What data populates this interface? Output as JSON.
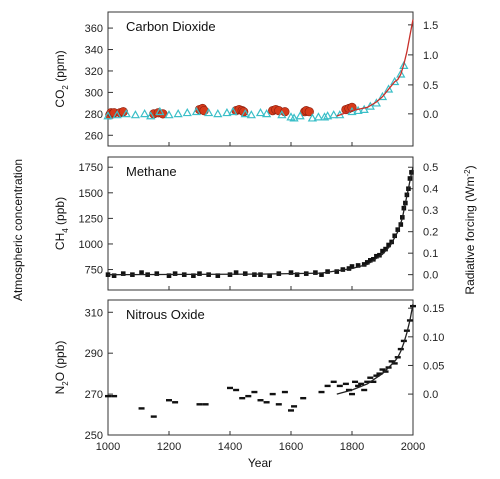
{
  "chart_data": {
    "type": "scatter",
    "shared": {
      "xlabel": "Year",
      "xlim": [
        1000,
        2000
      ],
      "xticks": [
        1000,
        1200,
        1400,
        1600,
        1800,
        2000
      ],
      "left_label": "Atmospheric concentration",
      "right_label": "Radiative forcing (Wm",
      "right_label_sup": "-2",
      "right_label_end": ")"
    },
    "panels": [
      {
        "id": "co2",
        "title": "Carbon Dioxide",
        "ylabel_main": "CO",
        "ylabel_sub": "2",
        "ylabel_unit": " (ppm)",
        "ylim": [
          250,
          375
        ],
        "yticks": [
          260,
          280,
          300,
          320,
          340,
          360
        ],
        "right_ticks": [
          {
            "label": "0.0",
            "at": 280
          },
          {
            "label": "0.5",
            "at": 307
          },
          {
            "label": "1.0",
            "at": 335
          },
          {
            "label": "1.5",
            "at": 363
          }
        ],
        "colors": {
          "circles": "#d63a1a",
          "triangles": "#3bbfc8",
          "curve": "#c8302a"
        },
        "series": [
          {
            "name": "",
            "marker": "circle",
            "x": [
              1006,
              1010,
              1015,
              1020,
              1040,
              1050,
              1150,
              1165,
              1180,
              1300,
              1310,
              1315,
              1420,
              1430,
              1440,
              1445,
              1540,
              1550,
              1560,
              1580,
              1645,
              1650,
              1660,
              1780,
              1790,
              1800
            ],
            "y": [
              279,
              281,
              280,
              281,
              281,
              282,
              280,
              281,
              280,
              284,
              285,
              283,
              283,
              284,
              283,
              282,
              283,
              284,
              283,
              282,
              282,
              283,
              282,
              284,
              285,
              286
            ]
          },
          {
            "name": "",
            "marker": "triangle",
            "x": [
              1000,
              1030,
              1060,
              1090,
              1120,
              1140,
              1170,
              1200,
              1230,
              1260,
              1290,
              1330,
              1360,
              1390,
              1410,
              1450,
              1470,
              1500,
              1520,
              1570,
              1600,
              1610,
              1630,
              1670,
              1690,
              1710,
              1720,
              1740,
              1760,
              1800,
              1820,
              1840,
              1860,
              1880,
              1900,
              1920,
              1940,
              1960,
              1970
            ],
            "y": [
              278,
              279,
              280,
              279,
              280,
              278,
              282,
              279,
              280,
              281,
              282,
              281,
              280,
              281,
              282,
              280,
              279,
              281,
              280,
              279,
              277,
              276,
              278,
              276,
              277,
              277,
              278,
              279,
              279,
              282,
              283,
              284,
              287,
              290,
              296,
              303,
              310,
              317,
              325
            ]
          },
          {
            "name": "",
            "marker": "curve",
            "x": [
              1750,
              1800,
              1850,
              1880,
              1900,
              1920,
              1940,
              1950,
              1960,
              1970,
              1980,
              1990,
              2000
            ],
            "y": [
              278,
              283,
              286,
              291,
              296,
              303,
              310,
              312,
              317,
              326,
              338,
              353,
              368
            ]
          }
        ]
      },
      {
        "id": "ch4",
        "title": "Methane",
        "ylabel_main": "CH",
        "ylabel_sub": "4",
        "ylabel_unit": " (ppb)",
        "ylim": [
          550,
          1850
        ],
        "yticks": [
          750,
          1000,
          1250,
          1500,
          1750
        ],
        "right_ticks": [
          {
            "label": "0.0",
            "at": 700
          },
          {
            "label": "0.1",
            "at": 910
          },
          {
            "label": "0.2",
            "at": 1120
          },
          {
            "label": "0.3",
            "at": 1330
          },
          {
            "label": "0.4",
            "at": 1540
          },
          {
            "label": "0.5",
            "at": 1750
          }
        ],
        "series": [
          {
            "name": "",
            "marker": "square",
            "x": [
              1000,
              1020,
              1050,
              1080,
              1110,
              1130,
              1160,
              1200,
              1220,
              1250,
              1280,
              1300,
              1330,
              1360,
              1400,
              1420,
              1450,
              1480,
              1500,
              1530,
              1560,
              1600,
              1620,
              1650,
              1680,
              1700,
              1720,
              1750,
              1770,
              1790,
              1800,
              1820,
              1840,
              1850,
              1860,
              1870,
              1880,
              1890,
              1900,
              1910,
              1920,
              1930,
              1940,
              1950,
              1960,
              1965,
              1970,
              1975,
              1980,
              1985,
              1990,
              1995
            ],
            "y": [
              700,
              690,
              710,
              700,
              720,
              700,
              710,
              690,
              710,
              700,
              690,
              710,
              700,
              690,
              700,
              720,
              710,
              700,
              700,
              690,
              710,
              720,
              700,
              710,
              720,
              700,
              730,
              730,
              750,
              760,
              780,
              790,
              800,
              820,
              840,
              850,
              880,
              890,
              930,
              950,
              990,
              1020,
              1080,
              1140,
              1190,
              1260,
              1350,
              1400,
              1480,
              1540,
              1640,
              1700
            ]
          },
          {
            "name": "",
            "marker": "curve",
            "x": [
              1000,
              1500,
              1700,
              1800,
              1850,
              1900,
              1925,
              1950,
              1965,
              1975,
              1985,
              1992,
              2000
            ],
            "y": [
              700,
              705,
              715,
              760,
              800,
              900,
              980,
              1120,
              1250,
              1400,
              1540,
              1650,
              1750
            ]
          }
        ]
      },
      {
        "id": "n2o",
        "title": "Nitrous Oxide",
        "ylabel_main": "N",
        "ylabel_sub": "2",
        "ylabel_unit": "O (ppb)",
        "ylim": [
          250,
          316
        ],
        "yticks": [
          250,
          270,
          290,
          310
        ],
        "right_ticks": [
          {
            "label": "0.0",
            "at": 270
          },
          {
            "label": "0.05",
            "at": 284
          },
          {
            "label": "0.10",
            "at": 298
          },
          {
            "label": "0.15",
            "at": 312
          }
        ],
        "series": [
          {
            "name": "",
            "marker": "dash",
            "x": [
              1000,
              1020,
              1110,
              1150,
              1200,
              1220,
              1300,
              1320,
              1400,
              1420,
              1440,
              1460,
              1480,
              1500,
              1520,
              1540,
              1560,
              1580,
              1600,
              1610,
              1640,
              1700,
              1720,
              1740,
              1760,
              1780,
              1790,
              1800,
              1810,
              1820,
              1830,
              1840,
              1850,
              1860,
              1870,
              1880,
              1890,
              1900,
              1910,
              1920,
              1930,
              1940,
              1950,
              1960,
              1970,
              1980,
              1990,
              2000
            ],
            "y": [
              269,
              269,
              263,
              259,
              267,
              266,
              265,
              265,
              273,
              272,
              268,
              269,
              271,
              267,
              266,
              270,
              265,
              271,
              262,
              264,
              268,
              271,
              274,
              276,
              274,
              275,
              272,
              270,
              276,
              274,
              275,
              272,
              276,
              278,
              276,
              279,
              280,
              282,
              281,
              283,
              286,
              285,
              288,
              292,
              296,
              301,
              306,
              313
            ]
          },
          {
            "name": "",
            "marker": "curve",
            "x": [
              1750,
              1800,
              1850,
              1900,
              1920,
              1940,
              1950,
              1960,
              1970,
              1980,
              1990,
              2000
            ],
            "y": [
              270,
              272,
              275,
              280,
              283,
              286,
              288,
              291,
              295,
              300,
              306,
              314
            ]
          }
        ]
      }
    ]
  }
}
